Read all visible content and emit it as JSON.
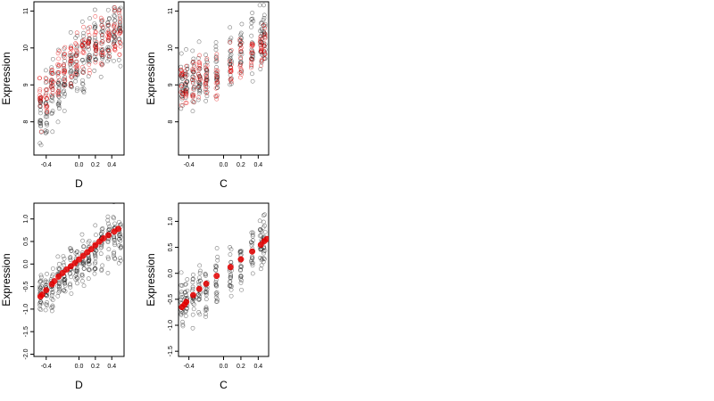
{
  "chart_data": [
    {
      "type": "scatter",
      "xlabel": "D",
      "ylabel": "Expression",
      "xlim": [
        -0.55,
        0.55
      ],
      "ylim": [
        7.1,
        11.25
      ],
      "xticks": [
        -0.4,
        0.0,
        0.2,
        0.4
      ],
      "xtick_labels": [
        "-0.4",
        "0.0",
        "0.2",
        "0.4"
      ],
      "yticks": [
        8,
        9,
        10,
        11
      ],
      "ytick_labels": [
        "8",
        "9",
        "10",
        "11"
      ],
      "columns": [
        -0.47,
        -0.4,
        -0.33,
        -0.25,
        -0.18,
        -0.1,
        -0.03,
        0.05,
        0.12,
        0.2,
        0.28,
        0.36,
        0.43,
        0.5
      ],
      "series": [
        {
          "color": "#000000",
          "columns_mean": [
            8.1,
            8.4,
            8.7,
            9.0,
            9.2,
            9.4,
            9.6,
            9.8,
            9.9,
            10.1,
            10.2,
            10.3,
            10.5,
            10.6
          ],
          "spread": 0.9
        },
        {
          "color": "#e60000",
          "columns_mean": [
            8.6,
            8.8,
            9.0,
            9.3,
            9.5,
            9.7,
            9.8,
            9.9,
            10.0,
            10.1,
            10.1,
            10.2,
            10.3,
            10.3
          ],
          "spread": 0.7
        }
      ],
      "grid": false,
      "legend": "none"
    },
    {
      "type": "scatter",
      "xlabel": "C",
      "ylabel": "Expression",
      "xlim": [
        -0.52,
        0.52
      ],
      "ylim": [
        7.1,
        11.25
      ],
      "xticks": [
        -0.4,
        0.0,
        0.2,
        0.4
      ],
      "xtick_labels": [
        "-0.4",
        "0.0",
        "0.2",
        "0.4"
      ],
      "yticks": [
        8,
        9,
        10,
        11
      ],
      "ytick_labels": [
        "8",
        "9",
        "10",
        "11"
      ],
      "columns": [
        -0.48,
        -0.43,
        -0.35,
        -0.28,
        -0.2,
        -0.08,
        0.08,
        0.2,
        0.33,
        0.43,
        0.47
      ],
      "series": [
        {
          "color": "#000000",
          "columns_mean": [
            8.9,
            9.0,
            9.1,
            9.2,
            9.3,
            9.4,
            9.7,
            9.9,
            10.0,
            10.2,
            10.3
          ],
          "spread": 0.8
        },
        {
          "color": "#e60000",
          "columns_mean": [
            9.0,
            9.0,
            9.1,
            9.2,
            9.2,
            9.3,
            9.5,
            9.7,
            9.9,
            10.1,
            10.2
          ],
          "spread": 0.6
        }
      ],
      "grid": false,
      "legend": "none"
    },
    {
      "type": "scatter",
      "xlabel": "D",
      "ylabel": "Expression",
      "xlim": [
        -0.55,
        0.55
      ],
      "ylim": [
        -2.05,
        1.35
      ],
      "xticks": [
        -0.4,
        0.0,
        0.2,
        0.4
      ],
      "xtick_labels": [
        "-0.4",
        "0.0",
        "0.2",
        "0.4"
      ],
      "yticks": [
        -2.0,
        -1.5,
        -1.0,
        -0.5,
        0.0,
        0.5,
        1.0
      ],
      "ytick_labels": [
        "-2.0",
        "-1.5",
        "-1.0",
        "-0.5",
        "0.0",
        "0.5",
        "1.0"
      ],
      "columns": [
        -0.47,
        -0.4,
        -0.33,
        -0.25,
        -0.18,
        -0.1,
        -0.03,
        0.05,
        0.12,
        0.2,
        0.28,
        0.36,
        0.43,
        0.5
      ],
      "series": [
        {
          "color": "#000000",
          "columns_mean": [
            -0.7,
            -0.6,
            -0.5,
            -0.35,
            -0.25,
            -0.1,
            -0.05,
            0.05,
            0.15,
            0.3,
            0.4,
            0.5,
            0.6,
            0.65
          ],
          "spread": 0.55
        },
        {
          "color": "#e60000",
          "fitted": [
            [
              -0.47,
              -0.72
            ],
            [
              -0.45,
              -0.68
            ],
            [
              -0.4,
              -0.58
            ],
            [
              -0.33,
              -0.45
            ],
            [
              -0.3,
              -0.38
            ],
            [
              -0.25,
              -0.28
            ],
            [
              -0.2,
              -0.2
            ],
            [
              -0.15,
              -0.12
            ],
            [
              -0.1,
              -0.05
            ],
            [
              -0.05,
              0.02
            ],
            [
              0.0,
              0.1
            ],
            [
              0.05,
              0.18
            ],
            [
              0.1,
              0.26
            ],
            [
              0.15,
              0.33
            ],
            [
              0.2,
              0.42
            ],
            [
              0.25,
              0.5
            ],
            [
              0.3,
              0.57
            ],
            [
              0.36,
              0.64
            ],
            [
              0.43,
              0.72
            ],
            [
              0.48,
              0.78
            ]
          ]
        }
      ],
      "grid": false,
      "legend": "none"
    },
    {
      "type": "scatter",
      "xlabel": "C",
      "ylabel": "Expression",
      "xlim": [
        -0.52,
        0.52
      ],
      "ylim": [
        -1.6,
        1.35
      ],
      "xticks": [
        -0.4,
        0.0,
        0.2,
        0.4
      ],
      "xtick_labels": [
        "-0.4",
        "0.0",
        "0.2",
        "0.4"
      ],
      "yticks": [
        -1.5,
        -1.0,
        -0.5,
        0.0,
        0.5,
        1.0
      ],
      "ytick_labels": [
        "-1.5",
        "-1.0",
        "-0.5",
        "0.0",
        "0.5",
        "1.0"
      ],
      "columns": [
        -0.48,
        -0.43,
        -0.35,
        -0.28,
        -0.2,
        -0.08,
        0.08,
        0.2,
        0.33,
        0.43,
        0.47
      ],
      "series": [
        {
          "color": "#000000",
          "columns_mean": [
            -0.6,
            -0.55,
            -0.45,
            -0.35,
            -0.25,
            -0.1,
            0.1,
            0.25,
            0.4,
            0.55,
            0.65
          ],
          "spread": 0.5
        },
        {
          "color": "#e60000",
          "fitted": [
            [
              -0.48,
              -0.65
            ],
            [
              -0.45,
              -0.6
            ],
            [
              -0.43,
              -0.55
            ],
            [
              -0.35,
              -0.42
            ],
            [
              -0.28,
              -0.3
            ],
            [
              -0.2,
              -0.2
            ],
            [
              -0.08,
              -0.05
            ],
            [
              0.08,
              0.12
            ],
            [
              0.2,
              0.27
            ],
            [
              0.33,
              0.42
            ],
            [
              0.43,
              0.55
            ],
            [
              0.47,
              0.62
            ],
            [
              0.5,
              0.66
            ]
          ]
        }
      ],
      "grid": false,
      "legend": "none"
    }
  ]
}
